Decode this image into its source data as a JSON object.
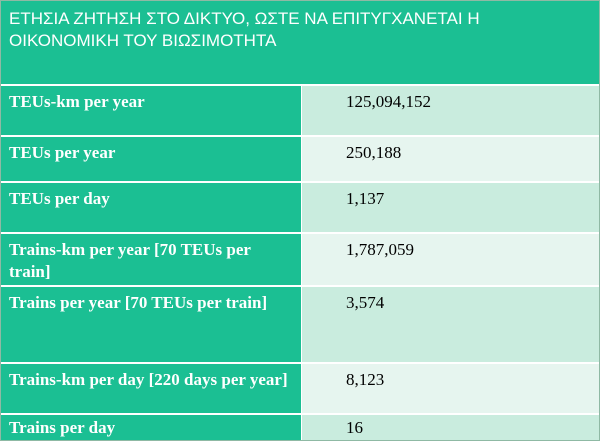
{
  "table": {
    "title": "ΕΤΗΣΙΑ ΖΗΤΗΣΗ ΣΤΟ ΔΙΚΤΥΟ, ΩΣΤΕ ΝΑ ΕΠΙΤΥΓΧΑΝΕΤΑΙ Η ΟΙΚΟΝΟΜΙΚΗ ΤΟΥ ΒΙΩΣΙΜΟΤΗΤΑ",
    "rows": [
      {
        "label": "TEUs-km per year",
        "value": "125,094,152"
      },
      {
        "label": "TEUs per year",
        "value": "250,188"
      },
      {
        "label": "TEUs per day",
        "value": "1,137"
      },
      {
        "label": "Trains-km per year [70 TEUs per train]",
        "value": "1,787,059"
      },
      {
        "label": "Trains per year [70 TEUs per train]",
        "value": "3,574"
      },
      {
        "label": "Trains-km per day [220 days per year]",
        "value": "8,123"
      },
      {
        "label": "Trains per day",
        "value": "16"
      }
    ]
  },
  "colors": {
    "header_green": "#1bbf93",
    "value_shade_dark": "#c9ecde",
    "value_shade_light": "#e6f5ef"
  }
}
